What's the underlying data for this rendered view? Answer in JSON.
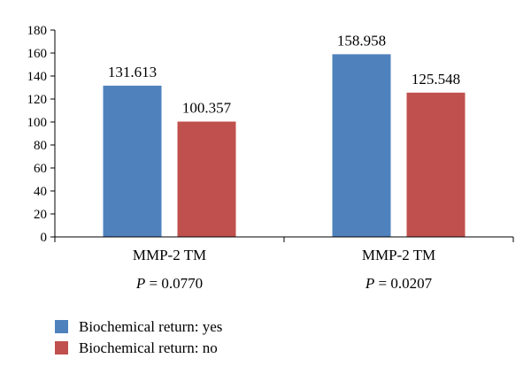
{
  "chart_data": {
    "type": "bar",
    "categories": [
      "MMP-2 TM",
      "MMP-2 TM"
    ],
    "p_values": [
      {
        "symbol": "P",
        "text": " = 0.0770"
      },
      {
        "symbol": "P",
        "text": " = 0.0207"
      }
    ],
    "series": [
      {
        "name": "Biochemical return: yes",
        "color": "#4f81bd",
        "values": [
          131.613,
          158.958
        ],
        "labels": [
          "131.613",
          "158.958"
        ]
      },
      {
        "name": "Biochemical return: no",
        "color": "#c0504d",
        "values": [
          100.357,
          125.548
        ],
        "labels": [
          "100.357",
          "125.548"
        ]
      }
    ],
    "ylim": [
      0,
      180
    ],
    "yticks": [
      0,
      20,
      40,
      60,
      80,
      100,
      120,
      140,
      160,
      180
    ],
    "grid": false,
    "legend_position": "bottom-left",
    "title": "",
    "xlabel": "",
    "ylabel": ""
  }
}
